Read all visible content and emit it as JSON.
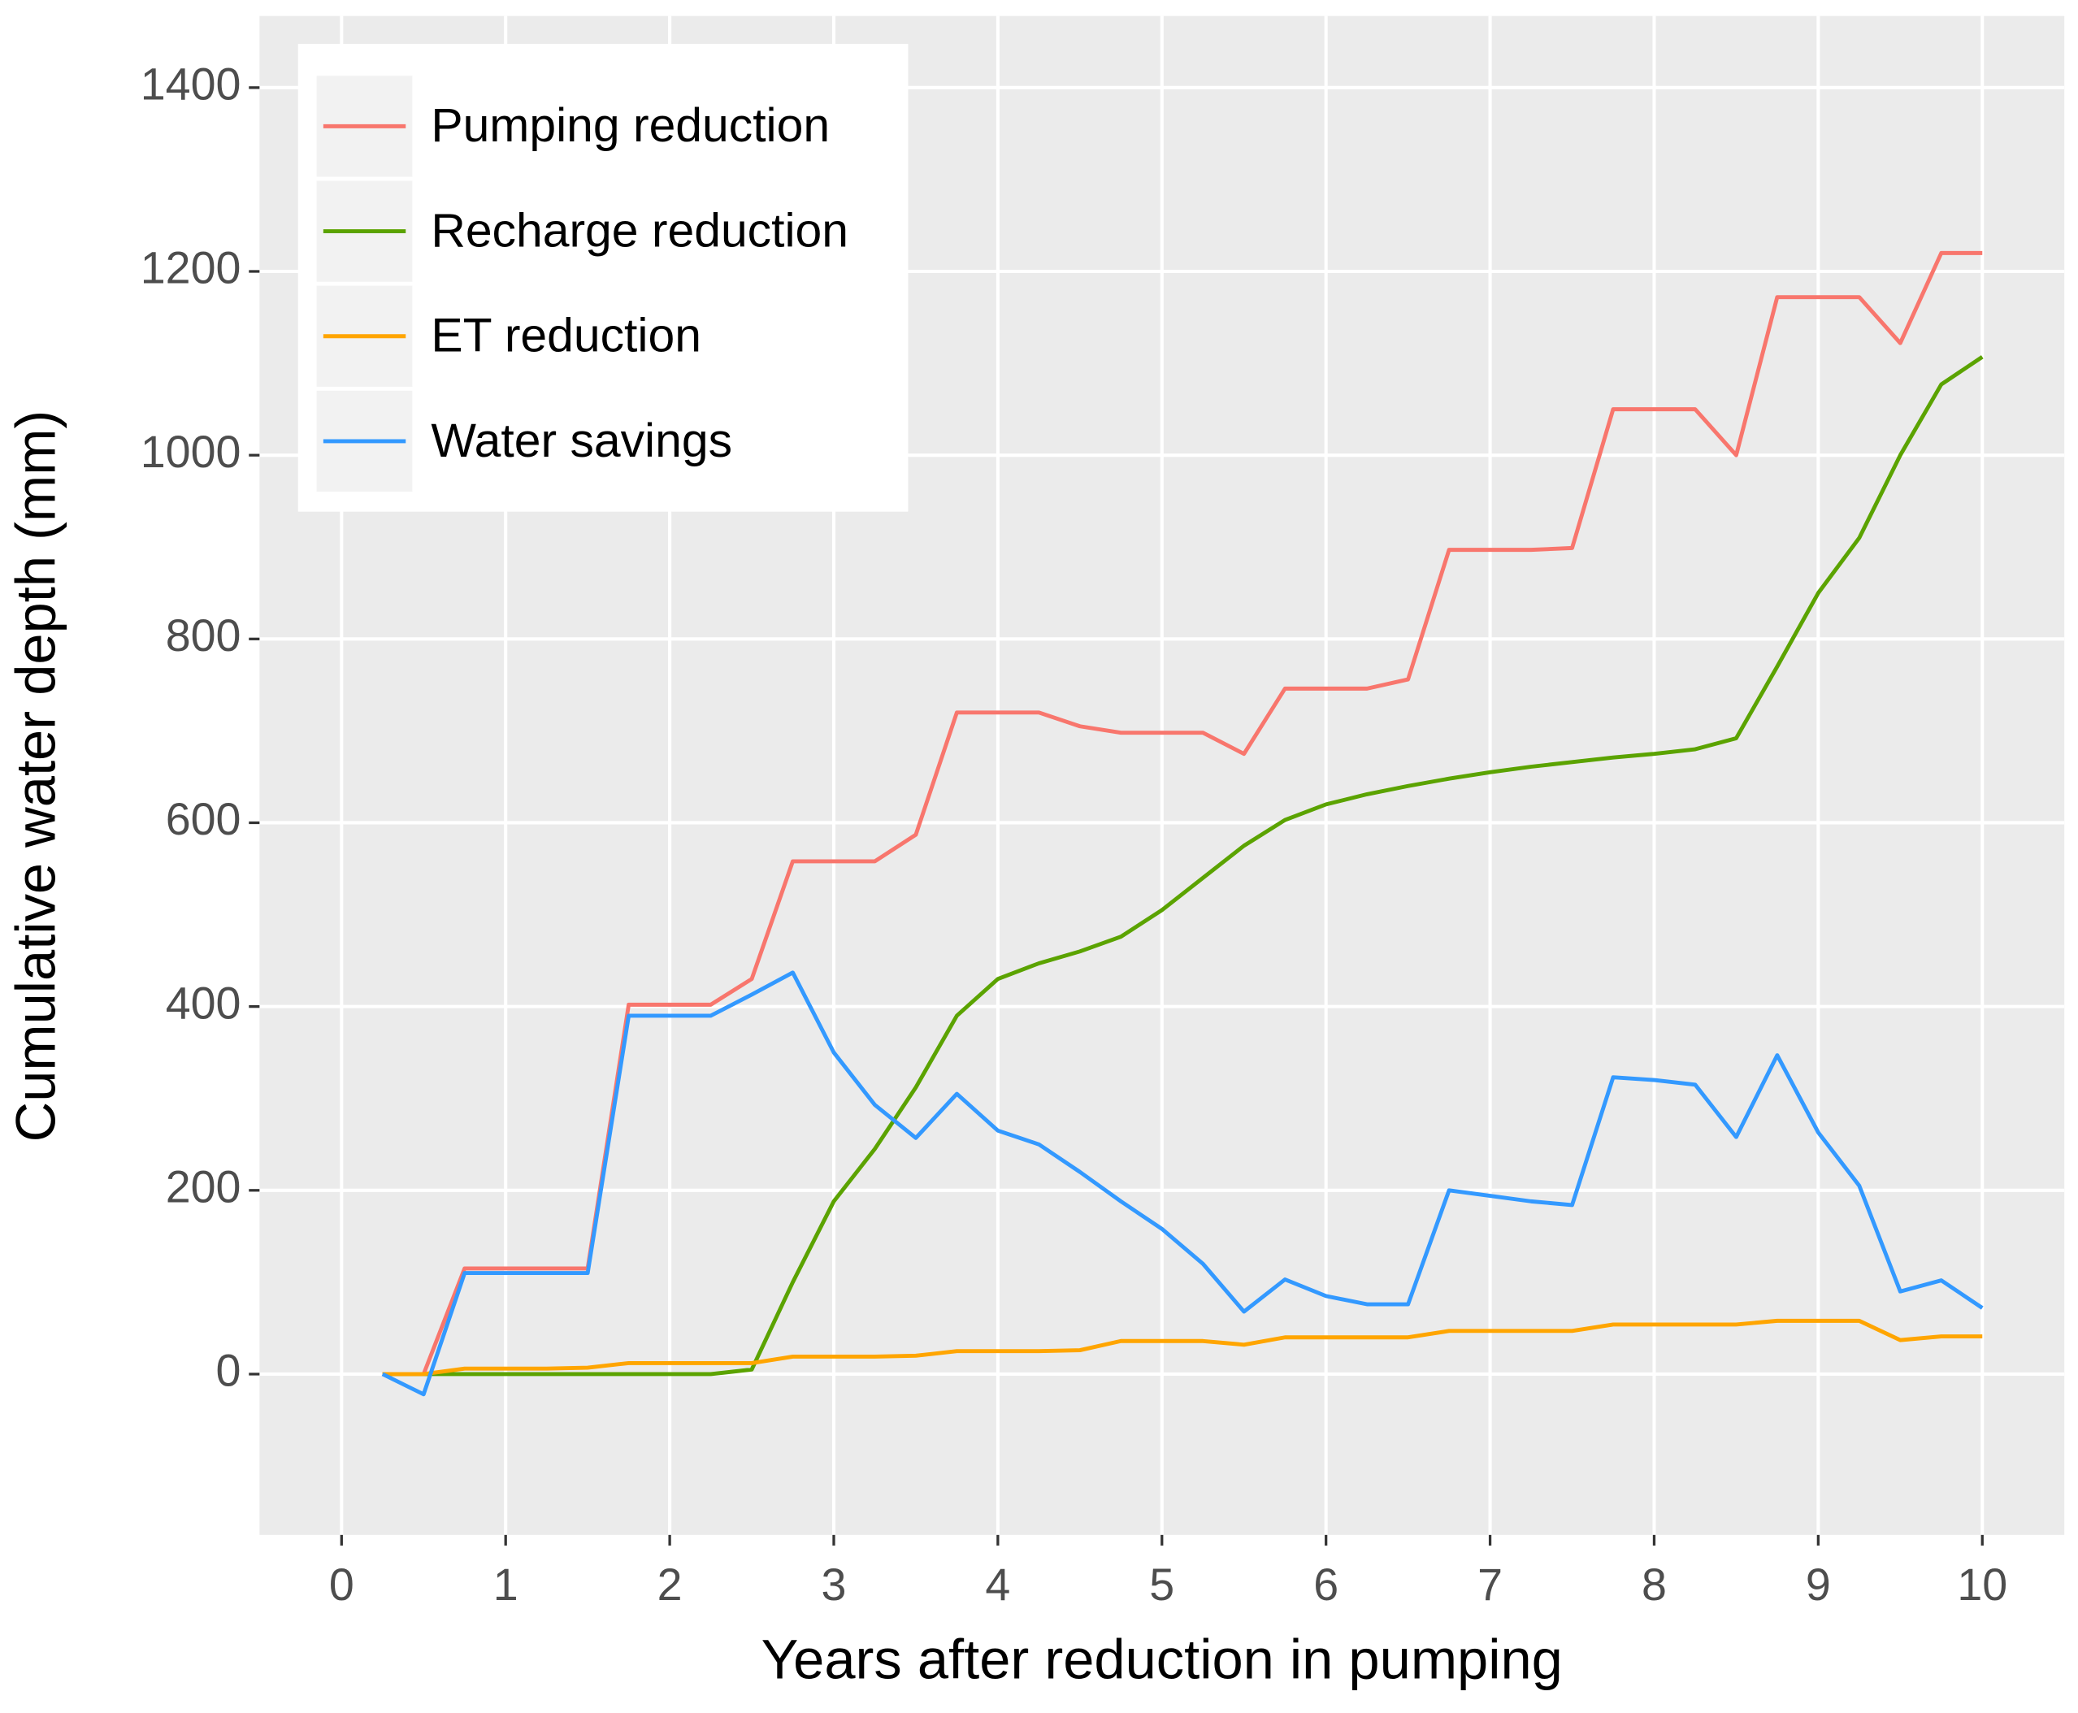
{
  "chart_data": {
    "type": "line",
    "x_label": "Years after reduction in pumping",
    "y_label": "Cumulative water depth (mm)",
    "x": [
      0.25,
      0.5,
      0.75,
      1,
      1.25,
      1.5,
      1.75,
      2,
      2.25,
      2.5,
      2.75,
      3,
      3.25,
      3.5,
      3.75,
      4,
      4.25,
      4.5,
      4.75,
      5,
      5.25,
      5.5,
      5.75,
      6,
      6.25,
      6.5,
      6.75,
      7,
      7.25,
      7.5,
      7.75,
      8,
      8.25,
      8.5,
      8.75,
      9,
      9.25,
      9.5,
      9.75,
      10
    ],
    "series": [
      {
        "name": "Pumping reduction",
        "color": "#F8766D",
        "values": [
          0,
          0,
          115,
          115,
          115,
          115,
          402,
          402,
          402,
          430,
          558,
          558,
          558,
          587,
          720,
          720,
          720,
          705,
          698,
          698,
          698,
          675,
          746,
          746,
          746,
          756,
          897,
          897,
          897,
          899,
          1050,
          1050,
          1050,
          1000,
          1172,
          1172,
          1172,
          1122,
          1220,
          1220
        ]
      },
      {
        "name": "Recharge reduction",
        "color": "#5BA300",
        "values": [
          0,
          0,
          0,
          0,
          0,
          0,
          0,
          0,
          0,
          5,
          100,
          188,
          245,
          312,
          390,
          430,
          447,
          460,
          476,
          505,
          540,
          575,
          603,
          620,
          631,
          640,
          648,
          655,
          661,
          666,
          671,
          675,
          680,
          692,
          770,
          850,
          910,
          1000,
          1077,
          1107
        ]
      },
      {
        "name": "ET reduction",
        "color": "#FFA500",
        "values": [
          0,
          0,
          6,
          6,
          6,
          7,
          12,
          12,
          12,
          12,
          19,
          19,
          19,
          20,
          25,
          25,
          25,
          26,
          36,
          36,
          36,
          32,
          40,
          40,
          40,
          40,
          47,
          47,
          47,
          47,
          54,
          54,
          54,
          54,
          58,
          58,
          58,
          37,
          41,
          41
        ]
      },
      {
        "name": "Water savings",
        "color": "#3399FF",
        "values": [
          0,
          -22,
          110,
          110,
          110,
          110,
          390,
          390,
          390,
          413,
          437,
          350,
          293,
          257,
          305,
          265,
          250,
          220,
          188,
          158,
          120,
          68,
          103,
          85,
          76,
          76,
          200,
          194,
          188,
          184,
          323,
          320,
          315,
          258,
          347,
          263,
          205,
          90,
          102,
          72
        ]
      }
    ],
    "xlim": [
      -0.5,
      10.5
    ],
    "xticks": [
      0,
      1,
      2,
      3,
      4,
      5,
      6,
      7,
      8,
      9,
      10
    ],
    "ylim": [
      -175,
      1478
    ],
    "yticks": [
      0,
      200,
      400,
      600,
      800,
      1000,
      1200,
      1400
    ],
    "grid": true,
    "legend": "top-left"
  }
}
